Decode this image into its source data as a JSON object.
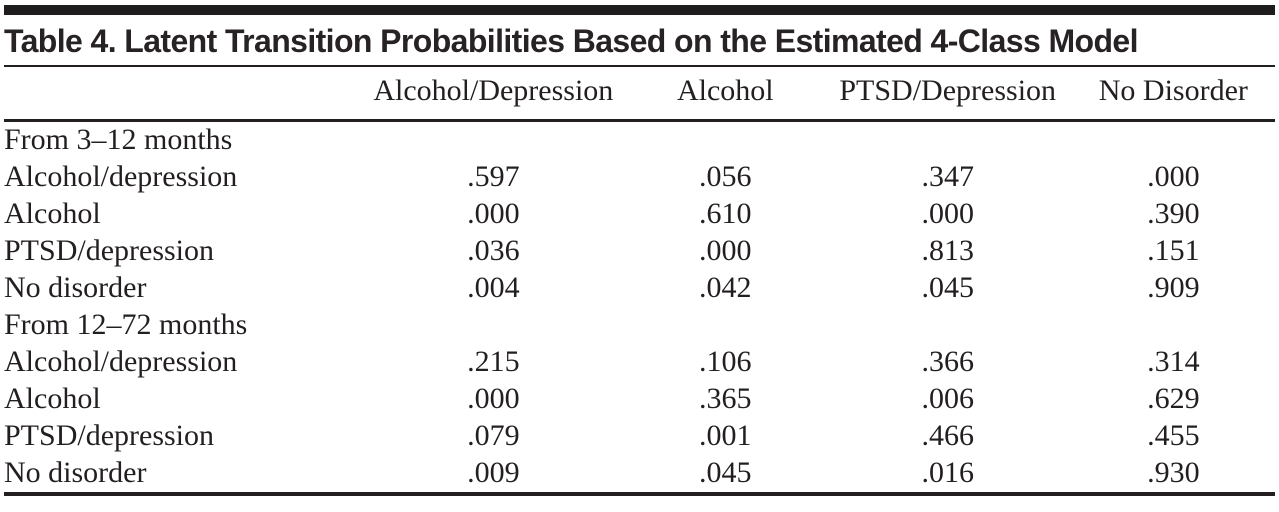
{
  "title": "Table 4. Latent Transition Probabilities Based on the Estimated 4-Class Model",
  "colors": {
    "text": "#231f20",
    "rule": "#231f20",
    "background": "#ffffff"
  },
  "table": {
    "stub_header": "",
    "columns": [
      "Alcohol/Depression",
      "Alcohol",
      "PTSD/Depression",
      "No Disorder"
    ],
    "sections": [
      {
        "label": "From 3–12 months",
        "rows": [
          {
            "label": "Alcohol/depression",
            "values": [
              ".597",
              ".056",
              ".347",
              ".000"
            ]
          },
          {
            "label": "Alcohol",
            "values": [
              ".000",
              ".610",
              ".000",
              ".390"
            ]
          },
          {
            "label": "PTSD/depression",
            "values": [
              ".036",
              ".000",
              ".813",
              ".151"
            ]
          },
          {
            "label": "No disorder",
            "values": [
              ".004",
              ".042",
              ".045",
              ".909"
            ]
          }
        ]
      },
      {
        "label": "From 12–72 months",
        "rows": [
          {
            "label": "Alcohol/depression",
            "values": [
              ".215",
              ".106",
              ".366",
              ".314"
            ]
          },
          {
            "label": "Alcohol",
            "values": [
              ".000",
              ".365",
              ".006",
              ".629"
            ]
          },
          {
            "label": "PTSD/depression",
            "values": [
              ".079",
              ".001",
              ".466",
              ".455"
            ]
          },
          {
            "label": "No disorder",
            "values": [
              ".009",
              ".045",
              ".016",
              ".930"
            ]
          }
        ]
      }
    ]
  }
}
